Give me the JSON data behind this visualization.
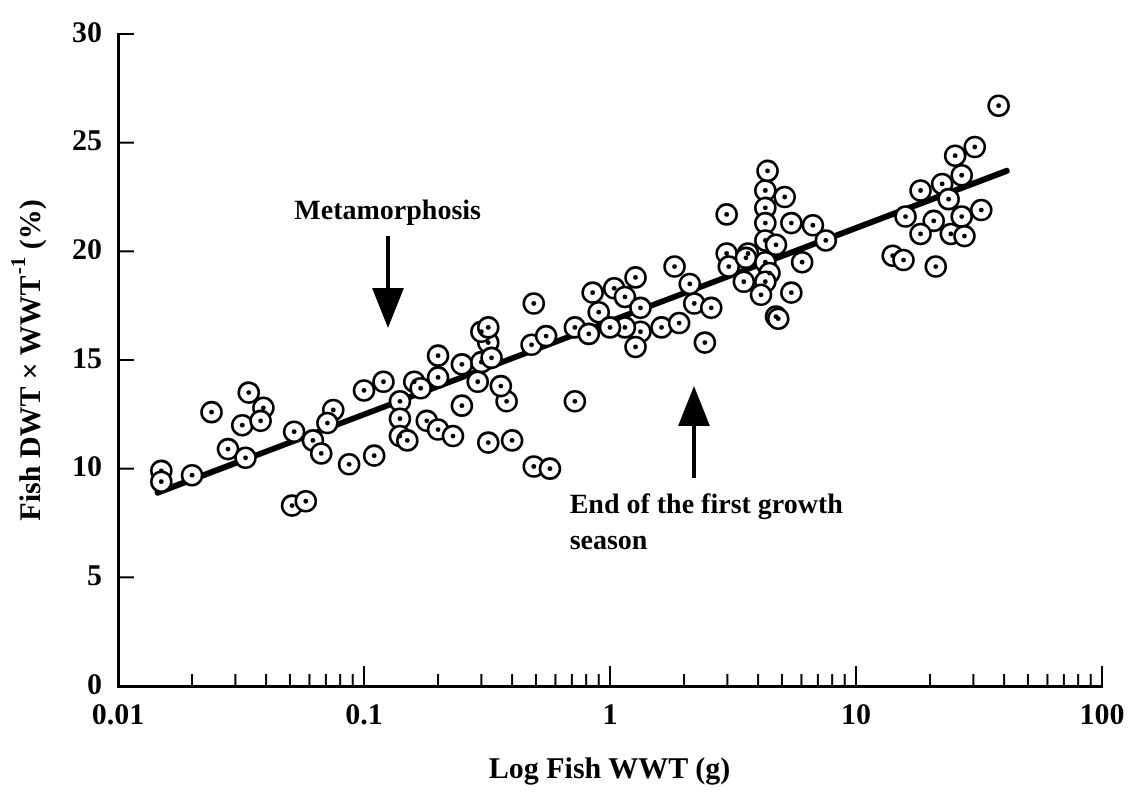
{
  "chart_data": {
    "type": "scatter",
    "xlabel": "Log Fish WWT (g)",
    "ylabel": "Fish DWT × WWT$^{-1}$ (%)",
    "log": "x",
    "grid": false,
    "legend": false,
    "xlim": [
      0.01,
      100
    ],
    "ylim": [
      0,
      30
    ],
    "yticks": [
      0,
      5,
      10,
      15,
      20,
      25,
      30
    ],
    "xticks": [
      0.01,
      {
        "value": 0.02,
        "label": null
      },
      {
        "value": 0.03,
        "label": null
      },
      {
        "value": 0.04,
        "label": null
      },
      {
        "value": 0.05,
        "label": null
      },
      {
        "value": 0.06,
        "label": null
      },
      {
        "value": 0.07,
        "label": null
      },
      {
        "value": 0.08,
        "label": null
      },
      {
        "value": 0.09,
        "label": null
      },
      0.1,
      {
        "value": 0.2,
        "label": null
      },
      {
        "value": 0.3,
        "label": null
      },
      {
        "value": 0.4,
        "label": null
      },
      {
        "value": 0.5,
        "label": null
      },
      {
        "value": 0.6,
        "label": null
      },
      {
        "value": 0.7,
        "label": null
      },
      {
        "value": 0.8,
        "label": null
      },
      {
        "value": 0.9,
        "label": null
      },
      1,
      {
        "value": 2,
        "label": null
      },
      {
        "value": 3,
        "label": null
      },
      {
        "value": 4,
        "label": null
      },
      {
        "value": 5,
        "label": null
      },
      {
        "value": 6,
        "label": null
      },
      {
        "value": 7,
        "label": null
      },
      {
        "value": 8,
        "label": null
      },
      {
        "value": 9,
        "label": null
      },
      10,
      {
        "value": 20,
        "label": null
      },
      {
        "value": 30,
        "label": null
      },
      {
        "value": 40,
        "label": null
      },
      {
        "value": 50,
        "label": null
      },
      {
        "value": 60,
        "label": null
      },
      {
        "value": 70,
        "label": null
      },
      {
        "value": 80,
        "label": null
      },
      {
        "value": 90,
        "label": null
      },
      100
    ],
    "annotations": [
      "Metamorphosis",
      "End of the first growth season"
    ],
    "series": [
      {
        "marker": "circle",
        "color": "#000000",
        "x": [
          0.015,
          0.015,
          0.02,
          0.024,
          0.034,
          0.039,
          0.032,
          0.038,
          0.028,
          0.033,
          0.052,
          0.062,
          0.067,
          0.075,
          0.071,
          0.051,
          0.058,
          0.087,
          0.11,
          0.1,
          0.12,
          0.14,
          0.14,
          0.14,
          0.15,
          0.16,
          0.17,
          0.2,
          0.2,
          0.18,
          0.2,
          0.23,
          0.25,
          0.3,
          0.29,
          0.25,
          0.32,
          0.3,
          0.32,
          0.33,
          0.38,
          0.36,
          0.32,
          0.4,
          0.49,
          0.57,
          0.49,
          0.48,
          0.55,
          0.72,
          0.72,
          0.82,
          0.85,
          0.9,
          1.04,
          1.15,
          1.33,
          1.33,
          1.15,
          1.27,
          1.0,
          1.27,
          1.62,
          1.91,
          1.83,
          2.2,
          2.43,
          2.11,
          2.58,
          2.98,
          3.04,
          3.64,
          3.5,
          2.98,
          4.28,
          4.28,
          4.28,
          4.28,
          4.28,
          4.45,
          4.73,
          4.37,
          5.13,
          5.46,
          6.68,
          7.54,
          3.57,
          4.73,
          6.04,
          4.28,
          5.46,
          4.83,
          4.11,
          38,
          30.4,
          25.3,
          26.9,
          22.4,
          18.3,
          23.8,
          32.3,
          15.9,
          20.7,
          26.9,
          18.3,
          24.3,
          27.6,
          14.1,
          15.6,
          21.1
        ],
        "values": [
          9.9,
          9.4,
          9.7,
          12.6,
          13.5,
          12.8,
          12.0,
          12.2,
          10.9,
          10.5,
          11.7,
          11.3,
          10.7,
          12.7,
          12.1,
          8.3,
          8.5,
          10.2,
          10.6,
          13.6,
          14.0,
          13.1,
          12.3,
          11.5,
          11.3,
          14.0,
          13.7,
          15.2,
          14.2,
          12.2,
          11.8,
          11.5,
          14.8,
          14.9,
          14.0,
          12.9,
          15.8,
          16.3,
          16.5,
          15.1,
          13.1,
          13.8,
          11.2,
          11.3,
          10.1,
          10.0,
          17.6,
          15.7,
          16.1,
          13.1,
          16.5,
          16.2,
          18.1,
          17.2,
          18.3,
          17.9,
          17.4,
          16.3,
          16.5,
          15.6,
          16.5,
          18.8,
          16.5,
          16.7,
          19.3,
          17.6,
          15.8,
          18.5,
          17.4,
          19.9,
          19.3,
          19.9,
          18.6,
          21.7,
          22.8,
          22.0,
          21.3,
          20.5,
          19.5,
          19.0,
          17.0,
          23.7,
          22.5,
          21.3,
          21.2,
          20.5,
          19.7,
          20.3,
          19.5,
          18.6,
          18.1,
          16.9,
          18.0,
          26.7,
          24.8,
          24.4,
          23.5,
          23.1,
          22.8,
          22.4,
          21.9,
          21.6,
          21.4,
          21.6,
          20.8,
          20.8,
          20.7,
          19.8,
          19.6,
          19.3
        ]
      },
      {
        "type": "line",
        "color": "#000000",
        "x": [
          0.0145,
          41
        ],
        "values": [
          8.9,
          23.7
        ]
      }
    ]
  }
}
